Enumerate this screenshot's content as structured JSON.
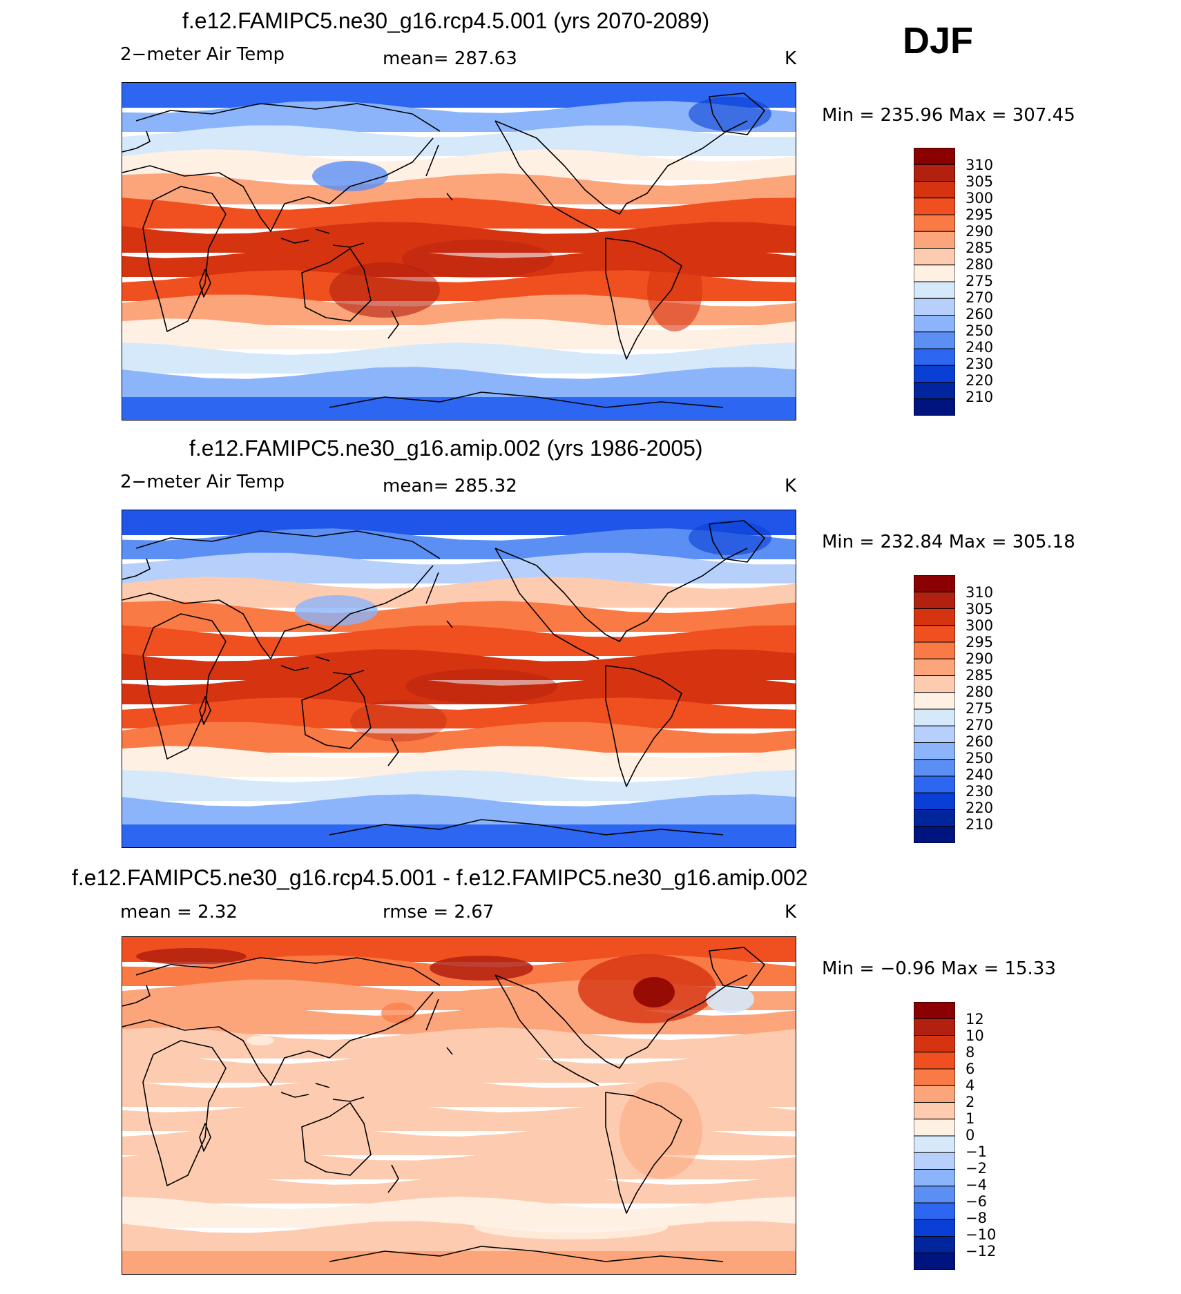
{
  "season": "DJF",
  "panels": [
    {
      "title": "f.e12.FAMIPC5.ne30_g16.rcp4.5.001 (yrs 2070-2089)",
      "left_label": "2−meter Air Temp",
      "center_label": "mean=  287.63",
      "units": "K",
      "minmax": "Min  =  235.96  Max  =  307.45",
      "legend_labels": [
        "310",
        "305",
        "300",
        "295",
        "290",
        "285",
        "280",
        "275",
        "270",
        "260",
        "250",
        "240",
        "230",
        "220",
        "210"
      ],
      "legend_colors": [
        "#8b0000",
        "#b2200f",
        "#d63310",
        "#f05020",
        "#fa7a45",
        "#fca47a",
        "#fdcbb0",
        "#fff0e4",
        "#d6e9fb",
        "#b6d0fb",
        "#8cb4fa",
        "#5b8ff4",
        "#2d66f0",
        "#0a3fd6",
        "#00259c",
        "#001480"
      ],
      "map_band_colors": [
        "#2d66f0",
        "#8cb4fa",
        "#d6e9fb",
        "#fff0e4",
        "#fca47a",
        "#f05020",
        "#d63310",
        "#d63310",
        "#f05020",
        "#fca47a",
        "#fff0e4",
        "#d6e9fb",
        "#8cb4fa",
        "#2d66f0"
      ]
    },
    {
      "title": "f.e12.FAMIPC5.ne30_g16.amip.002 (yrs 1986-2005)",
      "left_label": "2−meter Air Temp",
      "center_label": "mean=  285.32",
      "units": "K",
      "minmax": "Min  =  232.84  Max  =  305.18",
      "legend_labels": [
        "310",
        "305",
        "300",
        "295",
        "290",
        "285",
        "280",
        "275",
        "270",
        "260",
        "250",
        "240",
        "230",
        "220",
        "210"
      ],
      "legend_colors": [
        "#8b0000",
        "#b2200f",
        "#d63310",
        "#f05020",
        "#fa7a45",
        "#fca47a",
        "#fdcbb0",
        "#fff0e4",
        "#d6e9fb",
        "#b6d0fb",
        "#8cb4fa",
        "#5b8ff4",
        "#2d66f0",
        "#0a3fd6",
        "#00259c",
        "#001480"
      ],
      "map_band_colors": [
        "#1f55e8",
        "#5b8ff4",
        "#b6d0fb",
        "#fdcbb0",
        "#fa7a45",
        "#f05020",
        "#d63310",
        "#d63310",
        "#f05020",
        "#fa7a45",
        "#fff0e4",
        "#d6e9fb",
        "#8cb4fa",
        "#2d66f0"
      ]
    },
    {
      "title": "f.e12.FAMIPC5.ne30_g16.rcp4.5.001 - f.e12.FAMIPC5.ne30_g16.amip.002",
      "left_label": "mean =     2.32",
      "center_label": "rmse =     2.67",
      "units": "K",
      "minmax": "Min  =    −0.96  Max  =     15.33",
      "legend_labels": [
        "12",
        "10",
        "8",
        "6",
        "4",
        "2",
        "1",
        "0",
        "−1",
        "−2",
        "−4",
        "−6",
        "−8",
        "−10",
        "−12"
      ],
      "legend_colors": [
        "#8b0000",
        "#b2200f",
        "#d63310",
        "#f05020",
        "#fa7a45",
        "#fca47a",
        "#fdcbb0",
        "#fff0e4",
        "#d6e9fb",
        "#b6d0fb",
        "#8cb4fa",
        "#5b8ff4",
        "#2d66f0",
        "#0a3fd6",
        "#00259c",
        "#001480"
      ],
      "map_band_colors": [
        "#f05020",
        "#fa7a45",
        "#fca47a",
        "#fca47a",
        "#fdcbb0",
        "#fdcbb0",
        "#fdcbb0",
        "#fdcbb0",
        "#fdcbb0",
        "#fdcbb0",
        "#fdcbb0",
        "#fff0e4",
        "#fdcbb0",
        "#fca47a"
      ]
    }
  ]
}
